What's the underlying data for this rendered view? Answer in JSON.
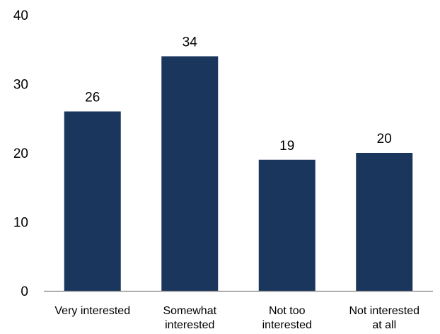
{
  "chart_data": {
    "type": "bar",
    "title": "",
    "xlabel": "",
    "ylabel": "",
    "categories": [
      [
        "Very interested"
      ],
      [
        "Somewhat",
        "interested"
      ],
      [
        "Not too",
        "interested"
      ],
      [
        "Not interested",
        "at all"
      ]
    ],
    "values": [
      26,
      34,
      19,
      20
    ],
    "ylim": [
      0,
      40
    ],
    "yticks": [
      0,
      10,
      20,
      30,
      40
    ],
    "grid": false,
    "legend": "none",
    "colors": {
      "bar": "#1b365d"
    }
  }
}
